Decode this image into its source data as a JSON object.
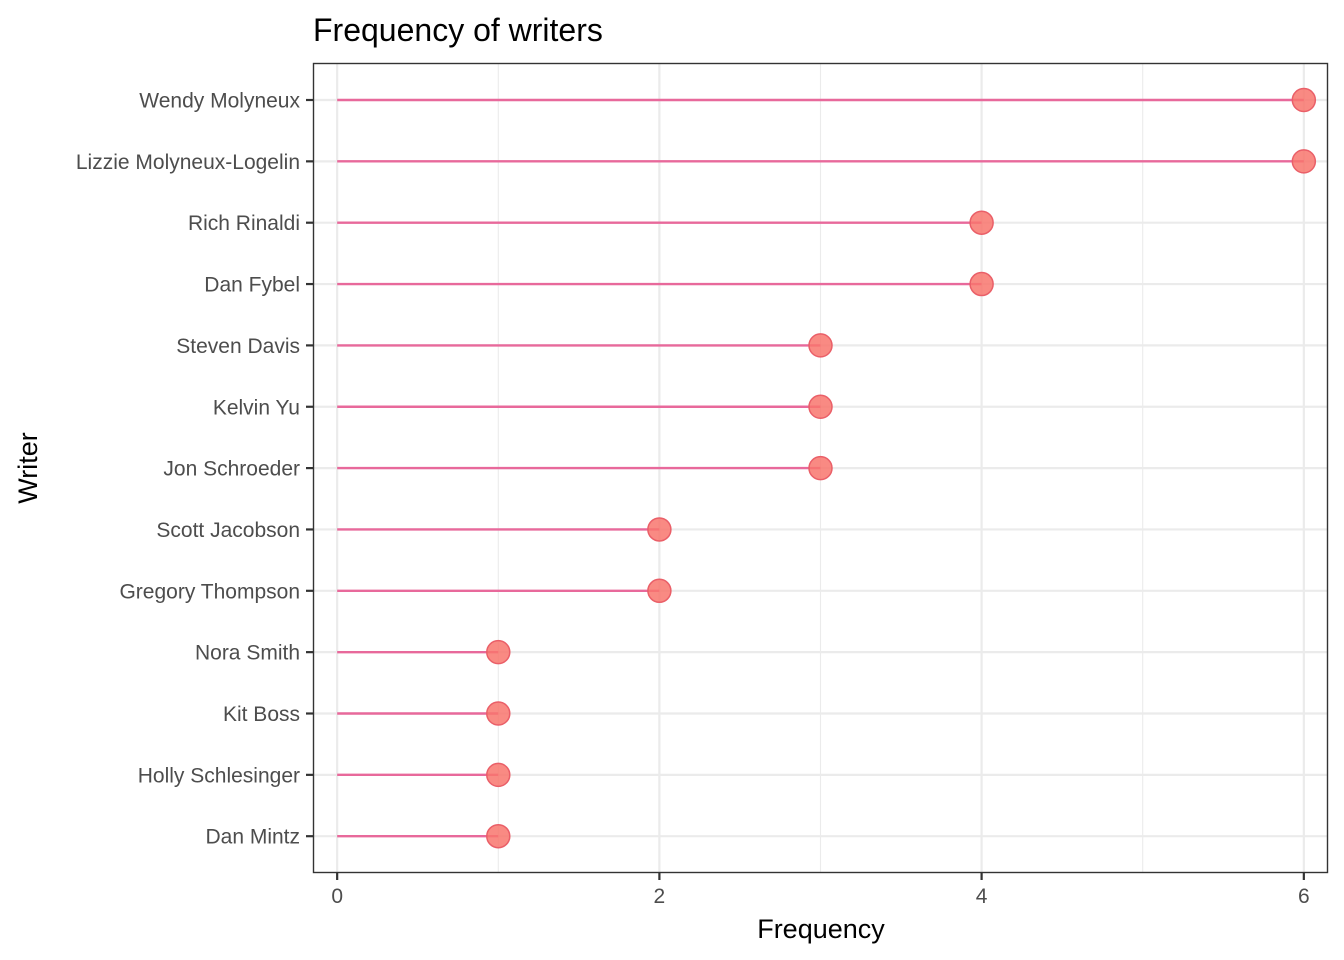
{
  "chart_data": {
    "type": "lollipop",
    "title": "Frequency of writers",
    "xlabel": "Frequency",
    "ylabel": "Writer",
    "xlim": [
      -0.15,
      6.15
    ],
    "x_ticks": [
      0,
      2,
      4,
      6
    ],
    "x_tick_labels": [
      "0",
      "2",
      "4",
      "6"
    ],
    "x_minor_ticks": [
      1,
      3,
      5
    ],
    "grid": true,
    "legend": "none",
    "segment_color": "#e8699b",
    "point_color": "#f8766d",
    "categories": [
      "Wendy Molyneux",
      "Lizzie Molyneux-Logelin",
      "Rich Rinaldi",
      "Dan Fybel",
      "Steven Davis",
      "Kelvin Yu",
      "Jon Schroeder",
      "Scott Jacobson",
      "Gregory Thompson",
      "Nora Smith",
      "Kit Boss",
      "Holly Schlesinger",
      "Dan Mintz"
    ],
    "values": [
      6,
      6,
      4,
      4,
      3,
      3,
      3,
      2,
      2,
      1,
      1,
      1,
      1
    ]
  }
}
